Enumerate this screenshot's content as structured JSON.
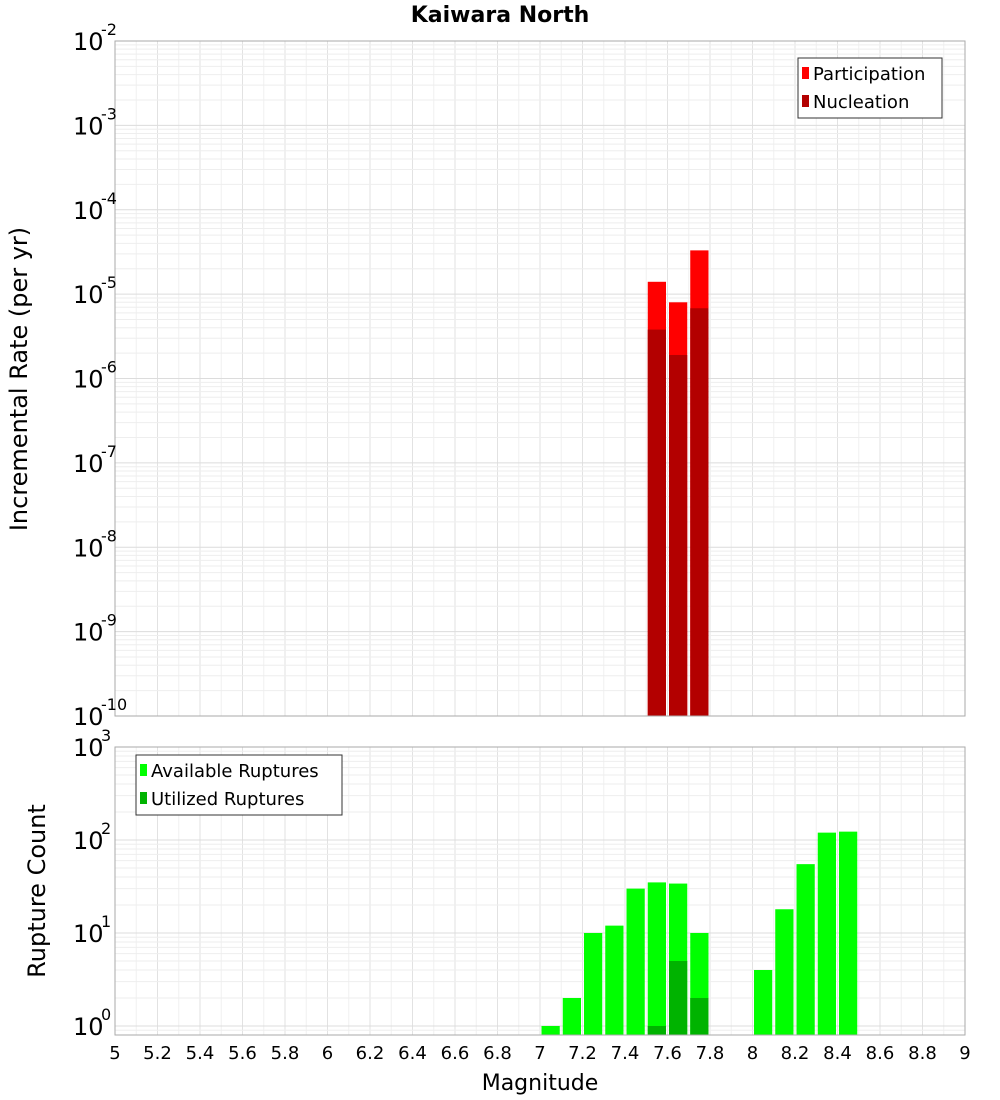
{
  "chart_data": [
    {
      "type": "bar",
      "title": "Kaiwara North",
      "xlabel": "",
      "ylabel": "Incremental Rate (per yr)",
      "y_scale": "log",
      "ylim": [
        1e-10,
        0.01
      ],
      "y_tick_exponents": [
        "-10",
        "-9",
        "-8",
        "-7",
        "-6",
        "-5",
        "-4",
        "-3",
        "-2"
      ],
      "xlim": [
        5,
        9
      ],
      "grid": true,
      "legend_placement": "top-right",
      "legend": [
        {
          "label": "Participation",
          "color": "#ff0000"
        },
        {
          "label": "Nucleation",
          "color": "#b30000"
        }
      ],
      "bin_width": 0.1,
      "series": [
        {
          "name": "Participation",
          "color": "#ff0000",
          "x": [
            7.55,
            7.65,
            7.75
          ],
          "values": [
            1.4e-05,
            8e-06,
            3.3e-05
          ]
        },
        {
          "name": "Nucleation",
          "color": "#b30000",
          "x": [
            7.55,
            7.65,
            7.75
          ],
          "values": [
            3.8e-06,
            1.9e-06,
            6.8e-06
          ]
        }
      ]
    },
    {
      "type": "bar",
      "title": "",
      "xlabel": "Magnitude",
      "ylabel": "Rupture Count",
      "y_scale": "log",
      "ylim": [
        0.8,
        1000
      ],
      "y_tick_exponents": [
        "0",
        "1",
        "2",
        "3"
      ],
      "xlim": [
        5,
        9
      ],
      "x_ticks": [
        "5",
        "5.2",
        "5.4",
        "5.6",
        "5.8",
        "6",
        "6.2",
        "6.4",
        "6.6",
        "6.8",
        "7",
        "7.2",
        "7.4",
        "7.6",
        "7.8",
        "8",
        "8.2",
        "8.4",
        "8.6",
        "8.8",
        "9"
      ],
      "grid": true,
      "legend_placement": "top-left",
      "legend": [
        {
          "label": "Available Ruptures",
          "color": "#00ff00"
        },
        {
          "label": "Utilized Ruptures",
          "color": "#00b300"
        }
      ],
      "bin_width": 0.1,
      "series": [
        {
          "name": "Available Ruptures",
          "color": "#00ff00",
          "x": [
            7.05,
            7.15,
            7.25,
            7.35,
            7.45,
            7.55,
            7.65,
            7.75,
            8.05,
            8.15,
            8.25,
            8.35,
            8.45
          ],
          "values": [
            1,
            2,
            10,
            12,
            30,
            35,
            34,
            10,
            4,
            18,
            55,
            120,
            123
          ]
        },
        {
          "name": "Utilized Ruptures",
          "color": "#00b300",
          "x": [
            7.55,
            7.65,
            7.75
          ],
          "values": [
            1,
            5,
            2
          ]
        }
      ]
    }
  ]
}
